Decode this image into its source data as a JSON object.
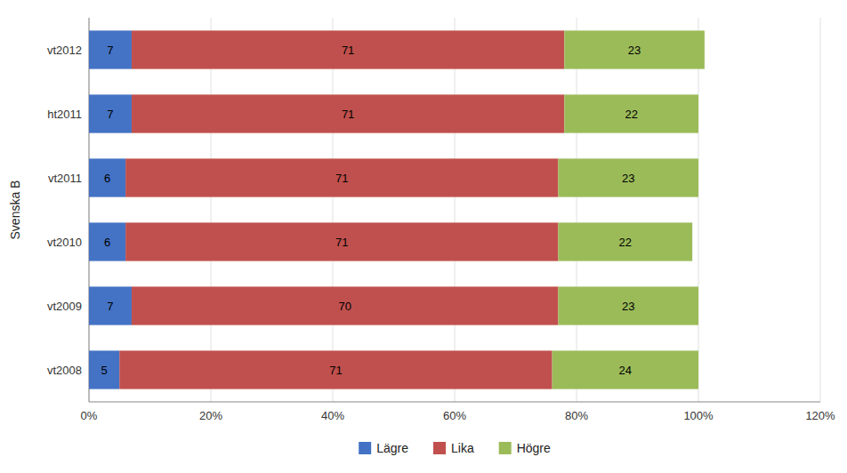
{
  "chart_data": {
    "type": "bar",
    "orientation": "horizontal",
    "stacked": true,
    "ylabel": "Svenska B",
    "categories": [
      "vt2008",
      "vt2009",
      "vt2010",
      "vt2011",
      "ht2011",
      "vt2012"
    ],
    "series": [
      {
        "name": "Lägre",
        "color": "#4472C4",
        "values": [
          5,
          7,
          6,
          6,
          7,
          7
        ]
      },
      {
        "name": "Lika",
        "color": "#C0504D",
        "values": [
          71,
          70,
          71,
          71,
          71,
          71
        ]
      },
      {
        "name": "Högre",
        "color": "#9BBB59",
        "values": [
          24,
          23,
          22,
          23,
          22,
          23
        ]
      }
    ],
    "xlim": [
      0,
      120
    ],
    "xticks": [
      {
        "value": 0,
        "label": "0%"
      },
      {
        "value": 20,
        "label": "20%"
      },
      {
        "value": 40,
        "label": "40%"
      },
      {
        "value": 60,
        "label": "60%"
      },
      {
        "value": 80,
        "label": "80%"
      },
      {
        "value": 100,
        "label": "100%"
      },
      {
        "value": 120,
        "label": "120%"
      }
    ],
    "grid": true,
    "legend": "bottom",
    "data_labels": true
  }
}
